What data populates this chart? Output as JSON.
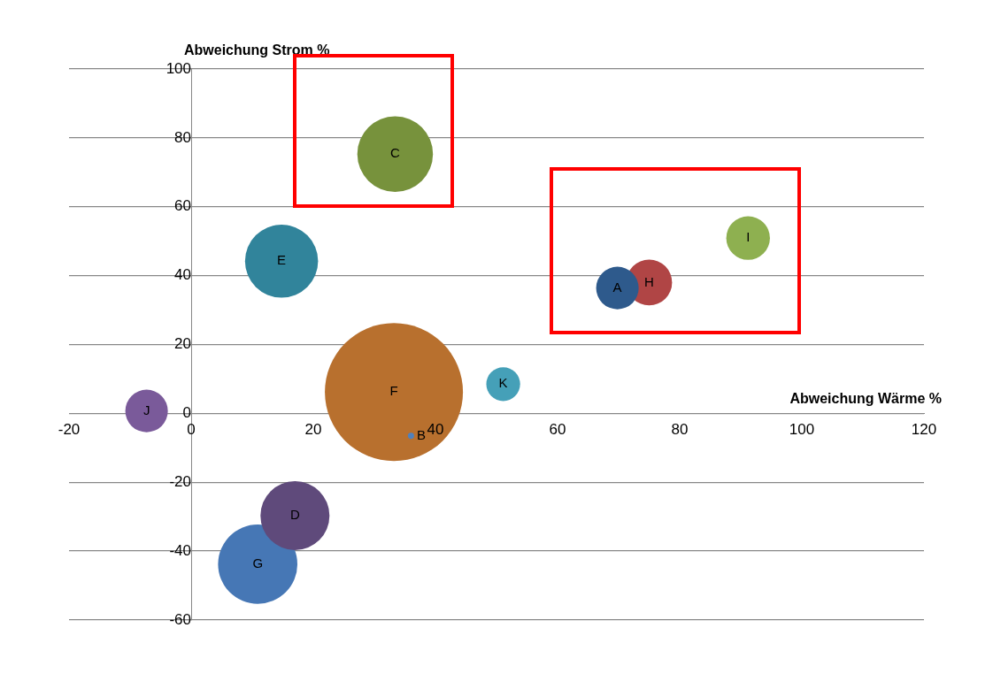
{
  "chart_data": {
    "type": "bubble",
    "xlabel": "Abweichung Wärme %",
    "ylabel": "Abweichung Strom %",
    "xlim": [
      -20,
      120
    ],
    "xticks": [
      -20,
      0,
      20,
      40,
      60,
      80,
      100,
      120
    ],
    "ylim": [
      -60,
      100
    ],
    "yticks": [
      -60,
      -40,
      -20,
      0,
      20,
      40,
      60,
      80,
      100
    ],
    "grid": "y",
    "legend": false,
    "data_labels": false,
    "series": [
      {
        "name": "A",
        "color": "#2e5a8c",
        "x": [
          69.8
        ],
        "values": [
          36.4
        ],
        "sizes": [
          0.095
        ]
      },
      {
        "name": "B",
        "color": "#4f81bd",
        "x": [
          36
        ],
        "values": [
          -6.5
        ],
        "sizes": [
          0.002
        ]
      },
      {
        "name": "C",
        "color": "#77923c",
        "x": [
          33.4
        ],
        "values": [
          75.3
        ],
        "sizes": [
          0.3
        ]
      },
      {
        "name": "D",
        "color": "#5f4a7b",
        "x": [
          17
        ],
        "values": [
          -29.7
        ],
        "sizes": [
          0.25
        ]
      },
      {
        "name": "E",
        "color": "#31849b",
        "x": [
          14.8
        ],
        "values": [
          44.2
        ],
        "sizes": [
          0.28
        ]
      },
      {
        "name": "F",
        "color": "#b8702e",
        "x": [
          33.2
        ],
        "values": [
          6.2
        ],
        "sizes": [
          1
        ]
      },
      {
        "name": "G",
        "color": "#4677b5",
        "x": [
          10.9
        ],
        "values": [
          -43.8
        ],
        "sizes": [
          0.33
        ]
      },
      {
        "name": "H",
        "color": "#b04545",
        "x": [
          75
        ],
        "values": [
          38
        ],
        "sizes": [
          0.11
        ]
      },
      {
        "name": "I",
        "color": "#8eb050",
        "x": [
          91.2
        ],
        "values": [
          50.9
        ],
        "sizes": [
          0.1
        ]
      },
      {
        "name": "J",
        "color": "#7a5a9a",
        "x": [
          -7.3
        ],
        "values": [
          0.7
        ],
        "sizes": [
          0.095
        ]
      },
      {
        "name": "K",
        "color": "#45a0b8",
        "x": [
          51.1
        ],
        "values": [
          8.5
        ],
        "sizes": [
          0.06
        ]
      }
    ]
  }
}
